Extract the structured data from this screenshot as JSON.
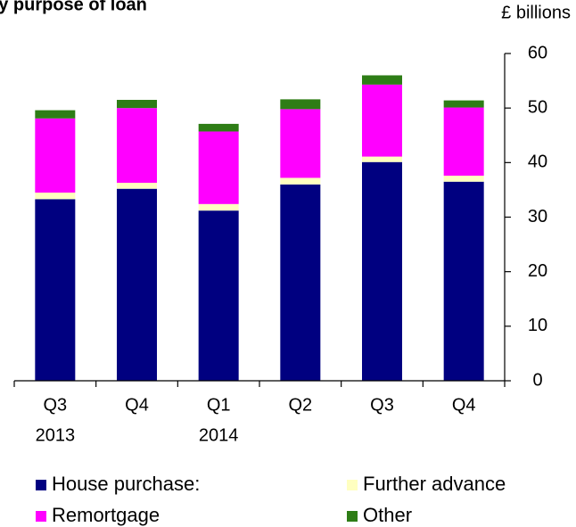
{
  "chart_data": {
    "type": "bar",
    "stacked": true,
    "title": "by purpose of loan",
    "ylabel": "£ billions",
    "ylim": [
      0,
      60
    ],
    "yticks": [
      0,
      10,
      20,
      30,
      40,
      50,
      60
    ],
    "y_axis_side": "right",
    "grid": false,
    "legend_position": "bottom",
    "categories": [
      [
        "Q3",
        "2013"
      ],
      [
        "Q4",
        ""
      ],
      [
        "Q1",
        "2014"
      ],
      [
        "Q2",
        ""
      ],
      [
        "Q3",
        ""
      ],
      [
        "Q4",
        ""
      ]
    ],
    "series": [
      {
        "name": "House purchase:",
        "color": "#000080",
        "values": [
          33.3,
          35.2,
          31.2,
          36.0,
          40.1,
          36.5
        ]
      },
      {
        "name": "Further advance",
        "color": "#FFFFC0",
        "values": [
          1.2,
          1.1,
          1.2,
          1.2,
          1.0,
          1.1
        ]
      },
      {
        "name": "Remortgage",
        "color": "#FF00FF",
        "values": [
          13.6,
          13.7,
          13.3,
          12.6,
          13.2,
          12.5
        ]
      },
      {
        "name": "Other",
        "color": "#2E7D16",
        "values": [
          1.5,
          1.5,
          1.4,
          1.8,
          1.7,
          1.3
        ]
      }
    ]
  }
}
